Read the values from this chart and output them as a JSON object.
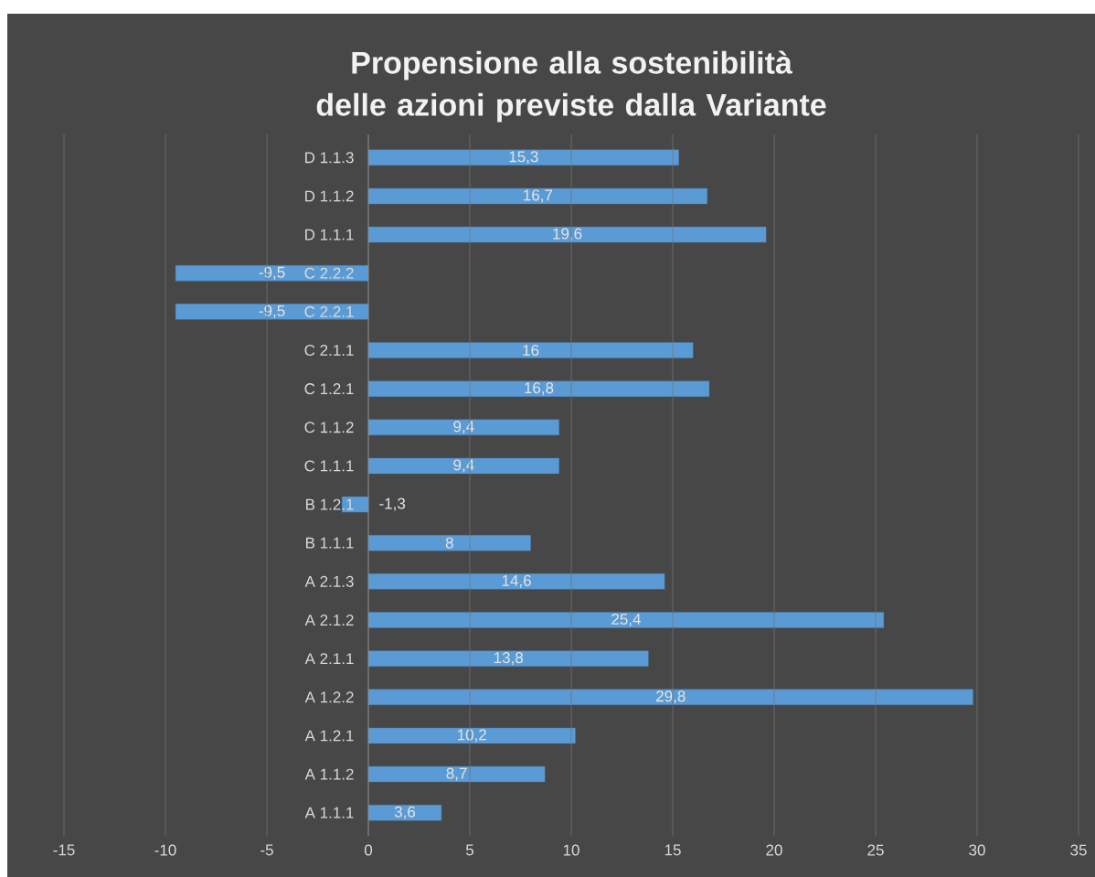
{
  "chart_data": {
    "type": "bar",
    "orientation": "horizontal",
    "title": "Propensione alla sostenibilità delle azioni previste dalla Variante",
    "categories": [
      "D 1.1.3",
      "D 1.1.2",
      "D 1.1.1",
      "C 2.2.2",
      "C 2.2.1",
      "C 2.1.1",
      "C 1.2.1",
      "C 1.1.2",
      "C 1.1.1",
      "B 1.2.1",
      "B 1.1.1",
      "A 2.1.3",
      "A 2.1.2",
      "A 2.1.1",
      "A 1.2.2",
      "A 1.2.1",
      "A 1.1.2",
      "A 1.1.1"
    ],
    "values": [
      15.3,
      16.7,
      19.6,
      -9.5,
      -9.5,
      16,
      16.8,
      9.4,
      9.4,
      -1.3,
      8,
      14.6,
      25.4,
      13.8,
      29.8,
      10.2,
      8.7,
      3.6
    ],
    "value_labels": [
      "15,3",
      "16,7",
      "19,6",
      "-9,5",
      "-9,5",
      "16",
      "16,8",
      "9,4",
      "9,4",
      "-1,3",
      "8",
      "14,6",
      "25,4",
      "13,8",
      "29,8",
      "10,2",
      "8,7",
      "3,6"
    ],
    "color": "#5b9bd5",
    "xlim": [
      -15,
      35
    ],
    "xticks": [
      -15,
      -10,
      -5,
      0,
      5,
      10,
      15,
      20,
      25,
      30,
      35
    ],
    "grid": "x"
  }
}
